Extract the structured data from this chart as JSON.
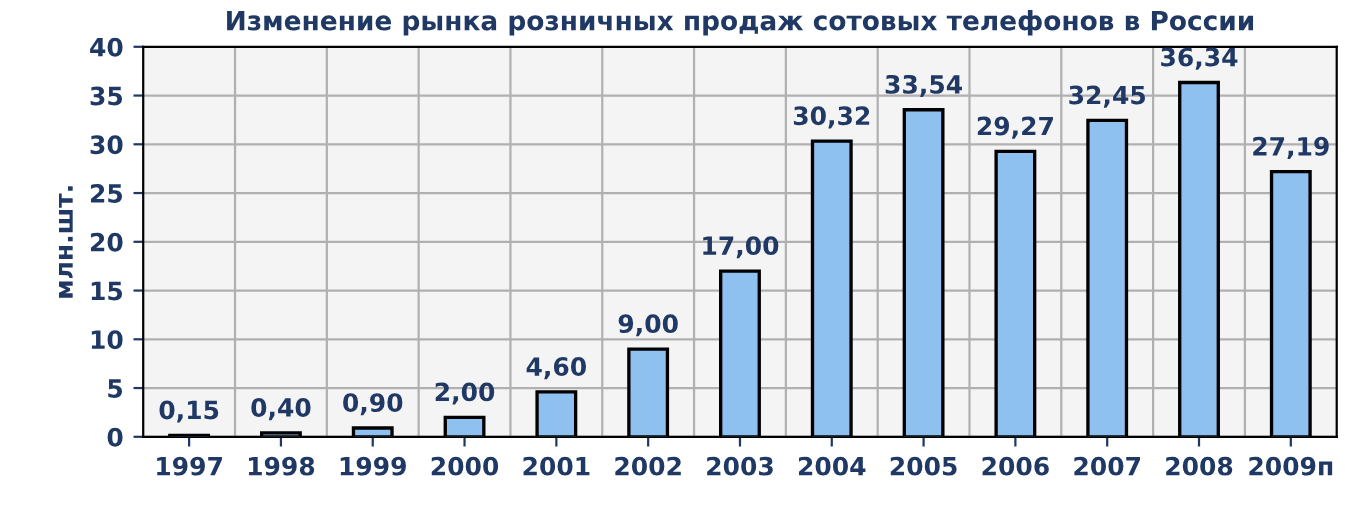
{
  "chart_data": {
    "type": "bar",
    "title": "Изменение рынка розничных продаж сотовых телефонов в России",
    "ylabel": "млн.шт.",
    "categories": [
      "1997",
      "1998",
      "1999",
      "2000",
      "2001",
      "2002",
      "2003",
      "2004",
      "2005",
      "2006",
      "2007",
      "2008",
      "2009п"
    ],
    "series": [
      {
        "color": "#8ec0f0",
        "values": [
          0.15,
          0.4,
          0.9,
          2.0,
          4.6,
          9.0,
          17.0,
          30.32,
          33.54,
          29.27,
          32.45,
          36.34,
          27.19
        ],
        "value_labels": [
          "0,15",
          "0,40",
          "0,90",
          "2,00",
          "4,60",
          "9,00",
          "17,00",
          "30,32",
          "33,54",
          "29,27",
          "32,45",
          "36,34",
          "27,19"
        ]
      }
    ],
    "ylim": [
      0,
      40
    ],
    "yticks": [
      0,
      5,
      10,
      15,
      20,
      25,
      30,
      35,
      40
    ],
    "grid": true,
    "legend": false
  }
}
